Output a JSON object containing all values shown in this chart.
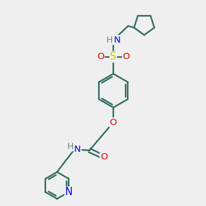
{
  "bg_color": "#efefef",
  "bond_color": "#2d6b5e",
  "atom_colors": {
    "N": "#0000dd",
    "O": "#dd0000",
    "S": "#cccc00",
    "H": "#5a8a80"
  },
  "figsize": [
    3.0,
    3.0
  ],
  "dpi": 100
}
